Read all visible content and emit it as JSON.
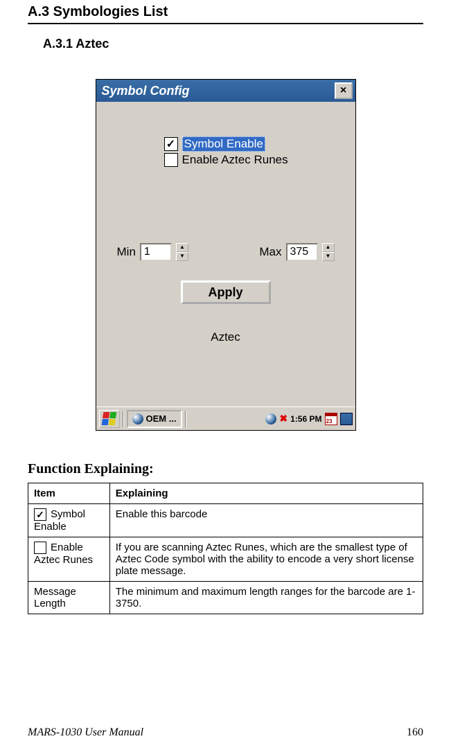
{
  "headings": {
    "a3": "A.3   Symbologies List",
    "a31": "A.3.1    Aztec"
  },
  "window": {
    "title": "Symbol Config",
    "checkboxes": {
      "symbol_enable": {
        "label": "Symbol Enable",
        "checked": true,
        "selected": true
      },
      "enable_aztec_runes": {
        "label": "Enable Aztec Runes",
        "checked": false,
        "selected": false
      }
    },
    "min": {
      "label": "Min",
      "value": "1"
    },
    "max": {
      "label": "Max",
      "value": "375"
    },
    "apply_label": "Apply",
    "footer_label": "Aztec"
  },
  "taskbar": {
    "task_label": "OEM ...",
    "time": "1:56 PM"
  },
  "function_heading": "Function Explaining:",
  "table": {
    "headers": {
      "item": "Item",
      "explaining": "Explaining"
    },
    "rows": [
      {
        "item_label": "Symbol Enable",
        "checked": true,
        "explaining": "Enable this barcode"
      },
      {
        "item_label": "Enable Aztec Runes",
        "checked": false,
        "explaining": "If you are scanning Aztec Runes, which are the smallest type of Aztec Code symbol with the ability to encode a very short license plate message."
      },
      {
        "item_label": "Message Length",
        "checked": null,
        "explaining": "The minimum and maximum length ranges for the barcode are 1-3750."
      }
    ]
  },
  "footer": {
    "manual": "MARS-1030 User Manual",
    "page": "160"
  },
  "colors": {
    "titlebar_bg": "#3a6ea5",
    "win_bg": "#d4d0c8",
    "page_bg": "#ffffff",
    "text": "#000000"
  }
}
